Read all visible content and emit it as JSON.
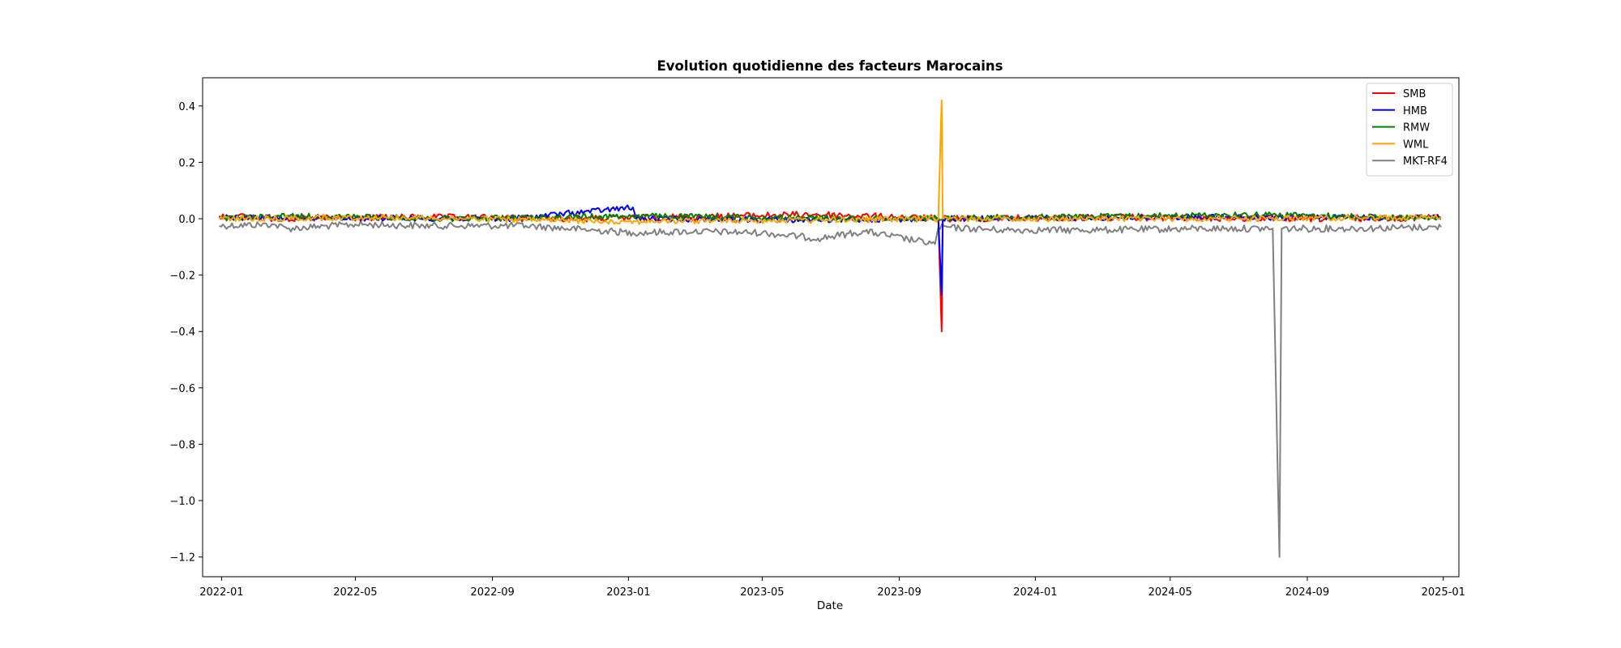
{
  "chart_data": {
    "type": "line",
    "title": "Evolution quotidienne des facteurs Marocains",
    "xlabel": "Date",
    "ylabel": "",
    "x_range": [
      "2021-12-15",
      "2025-01-15"
    ],
    "ylim": [
      -1.27,
      0.5
    ],
    "x_ticks": [
      "2022-01",
      "2022-05",
      "2022-09",
      "2023-01",
      "2023-05",
      "2023-09",
      "2024-01",
      "2024-05",
      "2024-09",
      "2025-01"
    ],
    "y_ticks": [
      0.4,
      0.2,
      0.0,
      -0.2,
      -0.4,
      -0.6,
      -0.8,
      -1.0,
      -1.2
    ],
    "grid": false,
    "legend_position": "top-right",
    "series": [
      {
        "name": "SMB",
        "color": "#ff0000",
        "points": [
          [
            "2021-12-30",
            0.01
          ],
          [
            "2022-03-01",
            0.0
          ],
          [
            "2022-07-01",
            0.005
          ],
          [
            "2022-12-01",
            0.0
          ],
          [
            "2023-06-20",
            0.015
          ],
          [
            "2023-10-06",
            0.0
          ],
          [
            "2023-10-09",
            -0.4
          ],
          [
            "2023-10-10",
            0.0
          ],
          [
            "2024-03-01",
            0.005
          ],
          [
            "2024-09-01",
            0.0
          ],
          [
            "2024-12-30",
            0.005
          ]
        ]
      },
      {
        "name": "HMB",
        "color": "#0000ff",
        "points": [
          [
            "2021-12-30",
            0.005
          ],
          [
            "2022-09-15",
            0.0
          ],
          [
            "2023-01-05",
            0.04
          ],
          [
            "2023-01-08",
            0.0
          ],
          [
            "2023-06-20",
            -0.005
          ],
          [
            "2023-10-06",
            0.0
          ],
          [
            "2023-10-09",
            -0.27
          ],
          [
            "2023-10-10",
            0.0
          ],
          [
            "2024-05-01",
            0.005
          ],
          [
            "2024-12-30",
            0.005
          ]
        ]
      },
      {
        "name": "RMW",
        "color": "#008000",
        "points": [
          [
            "2021-12-30",
            0.0
          ],
          [
            "2022-03-01",
            0.01
          ],
          [
            "2022-08-01",
            0.0
          ],
          [
            "2023-01-05",
            0.01
          ],
          [
            "2023-08-01",
            0.0
          ],
          [
            "2024-08-01",
            0.015
          ],
          [
            "2024-12-30",
            0.0
          ]
        ]
      },
      {
        "name": "WML",
        "color": "#ffa500",
        "points": [
          [
            "2021-12-30",
            0.0
          ],
          [
            "2022-06-01",
            0.005
          ],
          [
            "2023-01-01",
            -0.01
          ],
          [
            "2023-10-06",
            0.0
          ],
          [
            "2023-10-09",
            0.42
          ],
          [
            "2023-10-10",
            0.0
          ],
          [
            "2024-06-01",
            0.0
          ],
          [
            "2024-12-30",
            0.005
          ]
        ]
      },
      {
        "name": "MKT-RF4",
        "color": "#808080",
        "points": [
          [
            "2021-12-30",
            -0.025
          ],
          [
            "2022-02-15",
            -0.02
          ],
          [
            "2022-03-01",
            -0.035
          ],
          [
            "2022-05-01",
            -0.02
          ],
          [
            "2022-07-01",
            -0.025
          ],
          [
            "2022-10-01",
            -0.025
          ],
          [
            "2023-01-05",
            -0.05
          ],
          [
            "2023-03-01",
            -0.045
          ],
          [
            "2023-05-01",
            -0.05
          ],
          [
            "2023-06-20",
            -0.07
          ],
          [
            "2023-08-01",
            -0.045
          ],
          [
            "2023-10-03",
            -0.09
          ],
          [
            "2023-10-06",
            -0.03
          ],
          [
            "2023-12-01",
            -0.04
          ],
          [
            "2024-03-01",
            -0.04
          ],
          [
            "2024-06-01",
            -0.035
          ],
          [
            "2024-08-01",
            -0.035
          ],
          [
            "2024-08-07",
            -1.2
          ],
          [
            "2024-08-09",
            -0.035
          ],
          [
            "2024-10-01",
            -0.035
          ],
          [
            "2024-12-30",
            -0.03
          ]
        ]
      }
    ]
  }
}
